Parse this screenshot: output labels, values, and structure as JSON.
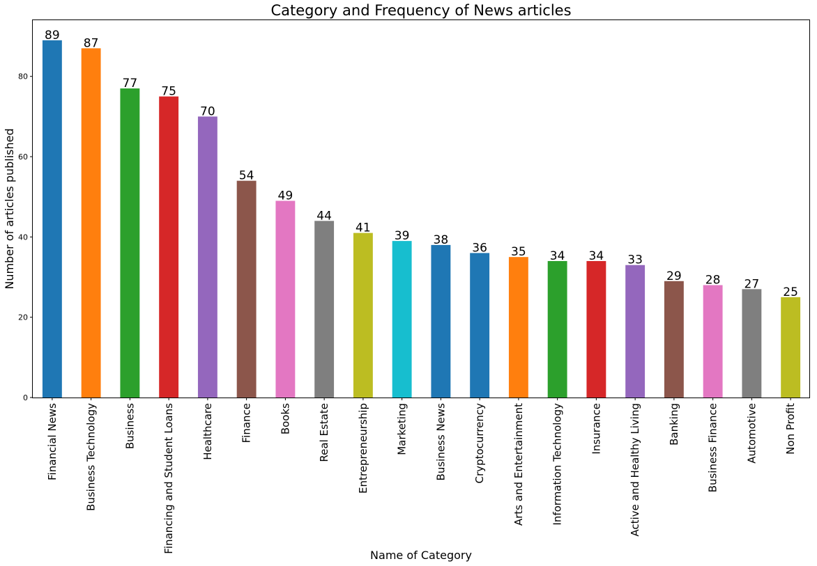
{
  "chart_data": {
    "type": "bar",
    "title": "Category and Frequency of News articles",
    "xlabel": "Name of Category",
    "ylabel": "Number of articles published",
    "ylim": [
      0,
      94
    ],
    "yticks": [
      0,
      20,
      40,
      60,
      80
    ],
    "grid": false,
    "legend": "none",
    "categories": [
      "Financial News",
      "Business Technology",
      "Business",
      "Financing and Student Loans",
      "Healthcare",
      "Finance",
      "Books",
      "Real Estate",
      "Entrepreneurship",
      "Marketing",
      "Business News",
      "Cryptocurrency",
      "Arts and Entertainment",
      "Information Technology",
      "Insurance",
      "Active and Healthy Living",
      "Banking",
      "Business Finance",
      "Automotive",
      "Non Profit"
    ],
    "values": [
      89,
      87,
      77,
      75,
      70,
      54,
      49,
      44,
      41,
      39,
      38,
      36,
      35,
      34,
      34,
      33,
      29,
      28,
      27,
      25
    ],
    "colors": [
      "#1f77b4",
      "#ff7f0e",
      "#2ca02c",
      "#d62728",
      "#9467bd",
      "#8c564b",
      "#e377c2",
      "#7f7f7f",
      "#bcbd22",
      "#17becf",
      "#1f77b4",
      "#1f77b4",
      "#ff7f0e",
      "#2ca02c",
      "#d62728",
      "#9467bd",
      "#8c564b",
      "#e377c2",
      "#7f7f7f",
      "#bcbd22"
    ]
  }
}
